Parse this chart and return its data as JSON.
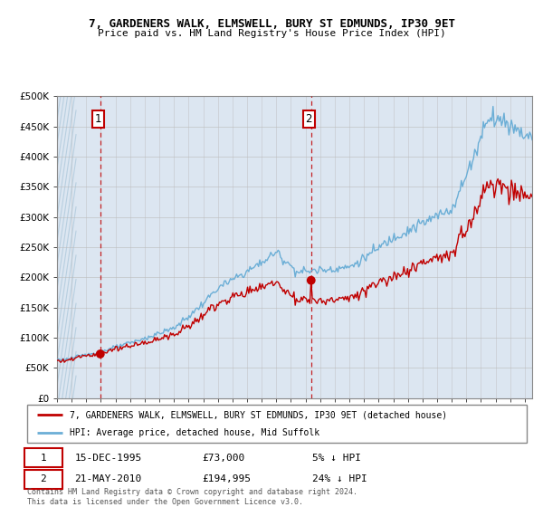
{
  "title_line1": "7, GARDENERS WALK, ELMSWELL, BURY ST EDMUNDS, IP30 9ET",
  "title_line2": "Price paid vs. HM Land Registry's House Price Index (HPI)",
  "ylim": [
    0,
    500000
  ],
  "yticks": [
    0,
    50000,
    100000,
    150000,
    200000,
    250000,
    300000,
    350000,
    400000,
    450000,
    500000
  ],
  "ytick_labels": [
    "£0",
    "£50K",
    "£100K",
    "£150K",
    "£200K",
    "£250K",
    "£300K",
    "£350K",
    "£400K",
    "£450K",
    "£500K"
  ],
  "hpi_color": "#6baed6",
  "price_color": "#c00000",
  "annotation_box_color": "#c00000",
  "background_color": "#dce6f1",
  "hatch_line_color": "#b8cfe0",
  "grid_color": "#bbbbbb",
  "sale1_date_x": 1995.96,
  "sale1_price": 73000,
  "sale1_label": "1",
  "sale1_date_str": "15-DEC-1995",
  "sale1_price_str": "£73,000",
  "sale1_pct_str": "5% ↓ HPI",
  "sale2_date_x": 2010.38,
  "sale2_price": 194995,
  "sale2_label": "2",
  "sale2_date_str": "21-MAY-2010",
  "sale2_price_str": "£194,995",
  "sale2_pct_str": "24% ↓ HPI",
  "legend_line1": "7, GARDENERS WALK, ELMSWELL, BURY ST EDMUNDS, IP30 9ET (detached house)",
  "legend_line2": "HPI: Average price, detached house, Mid Suffolk",
  "footer": "Contains HM Land Registry data © Crown copyright and database right 2024.\nThis data is licensed under the Open Government Licence v3.0.",
  "xmin": 1993.0,
  "xmax": 2025.5
}
